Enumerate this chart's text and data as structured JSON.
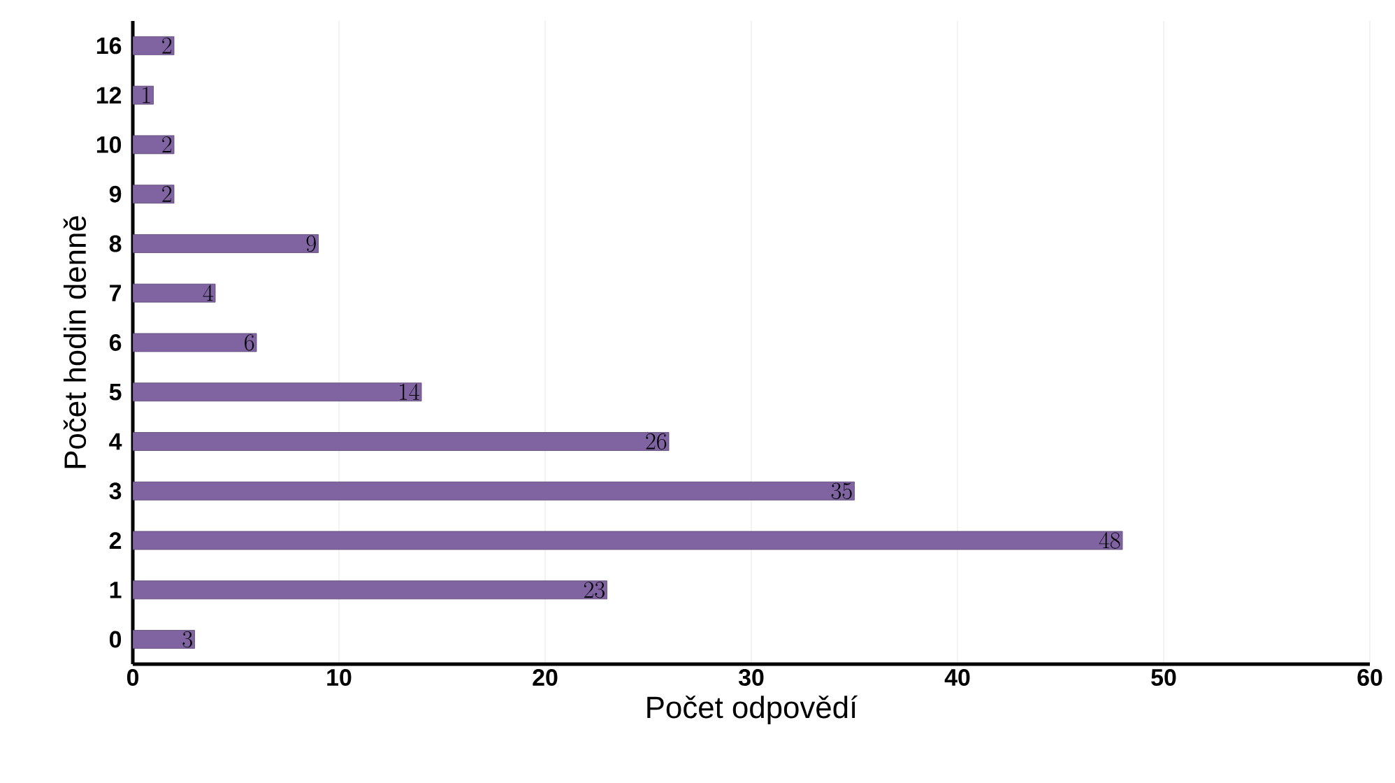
{
  "chart_data": {
    "type": "bar",
    "orientation": "horizontal",
    "xlabel": "Počet odpovědí",
    "ylabel": "Počet hodin denně",
    "categories": [
      "16",
      "12",
      "10",
      "9",
      "8",
      "7",
      "6",
      "5",
      "4",
      "3",
      "2",
      "1",
      "0"
    ],
    "values": [
      2,
      1,
      2,
      2,
      9,
      4,
      6,
      14,
      26,
      35,
      48,
      23,
      3
    ],
    "color": "#8064a2",
    "xlim": [
      0,
      60
    ],
    "xticks": [
      0,
      10,
      20,
      30,
      40,
      50,
      60
    ],
    "grid": "x",
    "data_labels": true
  }
}
